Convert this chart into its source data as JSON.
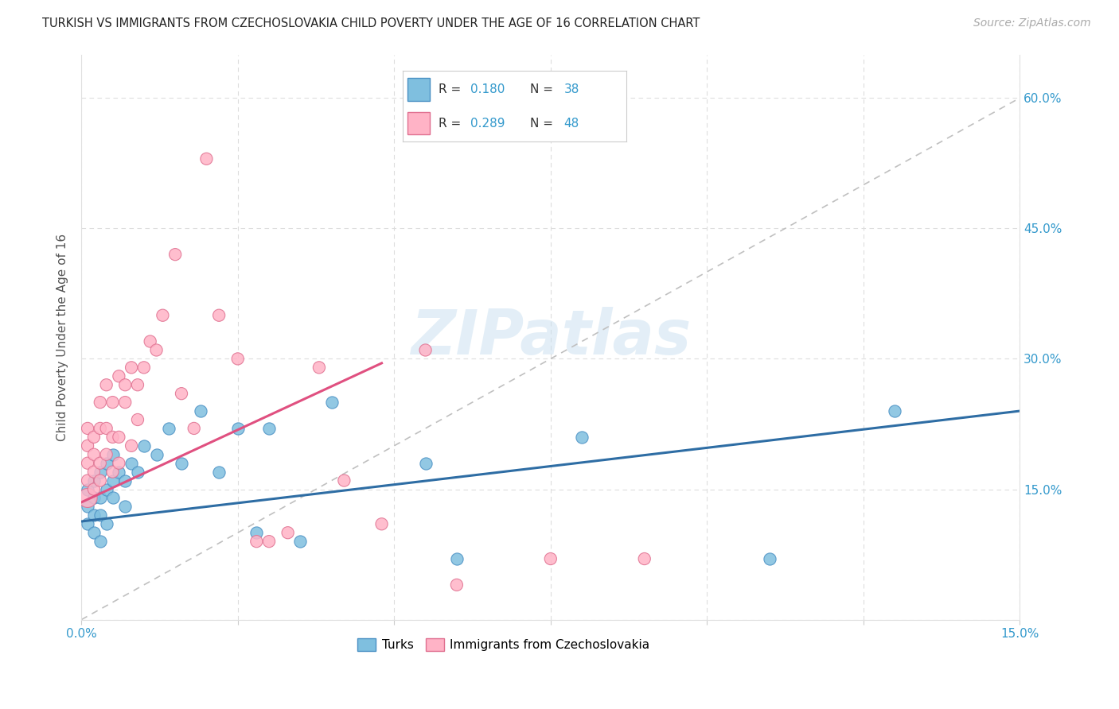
{
  "title": "TURKISH VS IMMIGRANTS FROM CZECHOSLOVAKIA CHILD POVERTY UNDER THE AGE OF 16 CORRELATION CHART",
  "source": "Source: ZipAtlas.com",
  "ylabel": "Child Poverty Under the Age of 16",
  "xlim": [
    0.0,
    0.15
  ],
  "ylim": [
    0.0,
    0.65
  ],
  "ytick_vals": [
    0.0,
    0.15,
    0.3,
    0.45,
    0.6
  ],
  "ytick_labels": [
    "",
    "15.0%",
    "30.0%",
    "45.0%",
    "60.0%"
  ],
  "xtick_vals": [
    0.0,
    0.15
  ],
  "xtick_labels": [
    "0.0%",
    "15.0%"
  ],
  "turks_color": "#7fbfdf",
  "turks_edge_color": "#4a90c4",
  "czechs_color": "#ffb3c6",
  "czechs_edge_color": "#e07090",
  "turks_line_color": "#2e6da4",
  "czechs_line_color": "#e05080",
  "R_turks": 0.18,
  "N_turks": 38,
  "R_czechs": 0.289,
  "N_czechs": 48,
  "legend_label_turks": "Turks",
  "legend_label_czechs": "Immigrants from Czechoslovakia",
  "watermark": "ZIPatlas",
  "turks_x": [
    0.001,
    0.001,
    0.001,
    0.002,
    0.002,
    0.002,
    0.002,
    0.003,
    0.003,
    0.003,
    0.003,
    0.004,
    0.004,
    0.004,
    0.005,
    0.005,
    0.005,
    0.006,
    0.007,
    0.007,
    0.008,
    0.009,
    0.01,
    0.012,
    0.014,
    0.016,
    0.019,
    0.022,
    0.025,
    0.028,
    0.03,
    0.035,
    0.04,
    0.055,
    0.06,
    0.08,
    0.11,
    0.13
  ],
  "turks_y": [
    0.13,
    0.15,
    0.11,
    0.14,
    0.12,
    0.16,
    0.1,
    0.17,
    0.14,
    0.12,
    0.09,
    0.18,
    0.15,
    0.11,
    0.19,
    0.16,
    0.14,
    0.17,
    0.16,
    0.13,
    0.18,
    0.17,
    0.2,
    0.19,
    0.22,
    0.18,
    0.24,
    0.17,
    0.22,
    0.1,
    0.22,
    0.09,
    0.25,
    0.18,
    0.07,
    0.21,
    0.07,
    0.24
  ],
  "turks_size_large": [
    0
  ],
  "czechs_x": [
    0.001,
    0.001,
    0.001,
    0.001,
    0.001,
    0.002,
    0.002,
    0.002,
    0.002,
    0.003,
    0.003,
    0.003,
    0.003,
    0.004,
    0.004,
    0.004,
    0.005,
    0.005,
    0.005,
    0.006,
    0.006,
    0.006,
    0.007,
    0.007,
    0.008,
    0.008,
    0.009,
    0.009,
    0.01,
    0.011,
    0.012,
    0.013,
    0.015,
    0.016,
    0.018,
    0.02,
    0.022,
    0.025,
    0.028,
    0.03,
    0.033,
    0.038,
    0.042,
    0.048,
    0.055,
    0.06,
    0.075,
    0.09
  ],
  "czechs_y": [
    0.14,
    0.16,
    0.18,
    0.2,
    0.22,
    0.17,
    0.19,
    0.21,
    0.15,
    0.16,
    0.18,
    0.22,
    0.25,
    0.19,
    0.22,
    0.27,
    0.17,
    0.21,
    0.25,
    0.18,
    0.21,
    0.28,
    0.25,
    0.27,
    0.2,
    0.29,
    0.23,
    0.27,
    0.29,
    0.32,
    0.31,
    0.35,
    0.42,
    0.26,
    0.22,
    0.53,
    0.35,
    0.3,
    0.09,
    0.09,
    0.1,
    0.29,
    0.16,
    0.11,
    0.31,
    0.04,
    0.07,
    0.07
  ],
  "czechs_large_idx": 0,
  "czechs_large_size": 300
}
